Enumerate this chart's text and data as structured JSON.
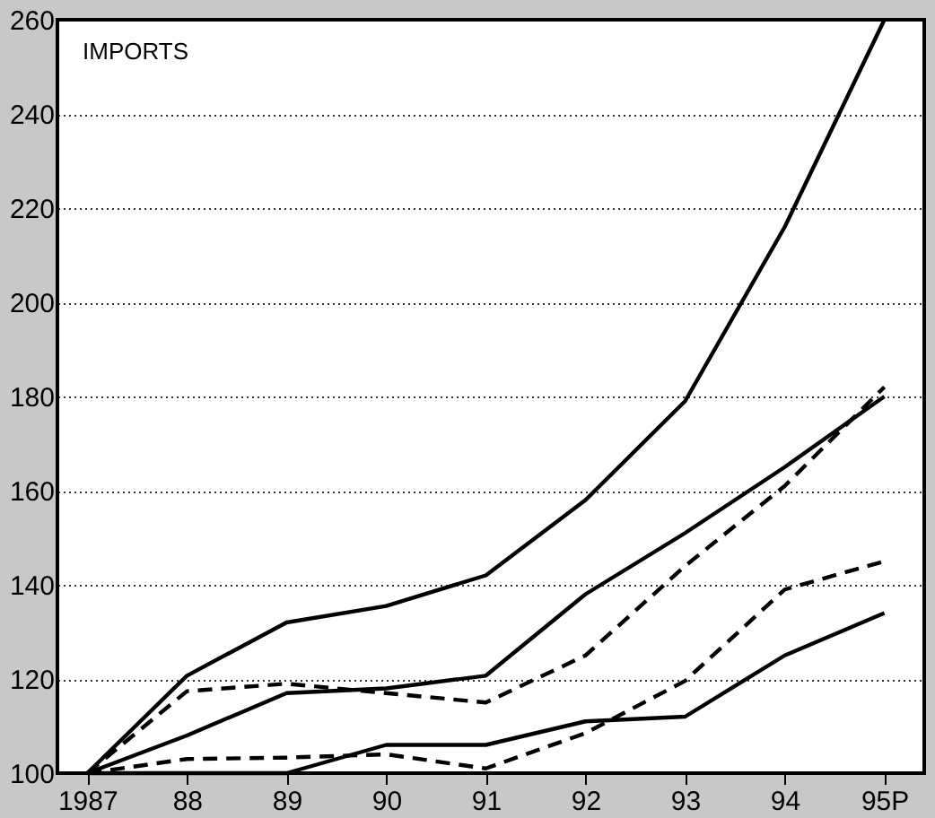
{
  "chart_data": {
    "type": "line",
    "title": "IMPORTS",
    "categories": [
      "1987",
      "88",
      "89",
      "90",
      "91",
      "92",
      "93",
      "94",
      "95P"
    ],
    "series": [
      {
        "color": "#000000",
        "line_style": "solid",
        "values": [
          100,
          120.7,
          132,
          135.5,
          142,
          158,
          179,
          216,
          260
        ]
      },
      {
        "color": "#000000",
        "line_style": "solid",
        "values": [
          100,
          108,
          117,
          118,
          120.7,
          138,
          151,
          165,
          180
        ]
      },
      {
        "color": "#000000",
        "line_style": "dashed",
        "values": [
          100,
          117.4,
          119,
          117,
          115,
          125,
          144,
          161,
          182
        ]
      },
      {
        "color": "#000000",
        "line_style": "dashed",
        "values": [
          100,
          103,
          103.3,
          104,
          101,
          108.5,
          119.6,
          139,
          145
        ]
      },
      {
        "color": "#000000",
        "line_style": "solid",
        "values": [
          100,
          100,
          100,
          106,
          106,
          111,
          112,
          125,
          134
        ]
      }
    ],
    "ylim": [
      100,
      260
    ],
    "yticks": [
      100,
      120,
      140,
      160,
      180,
      200,
      220,
      240,
      260
    ],
    "grid": "y",
    "marker": "none"
  }
}
